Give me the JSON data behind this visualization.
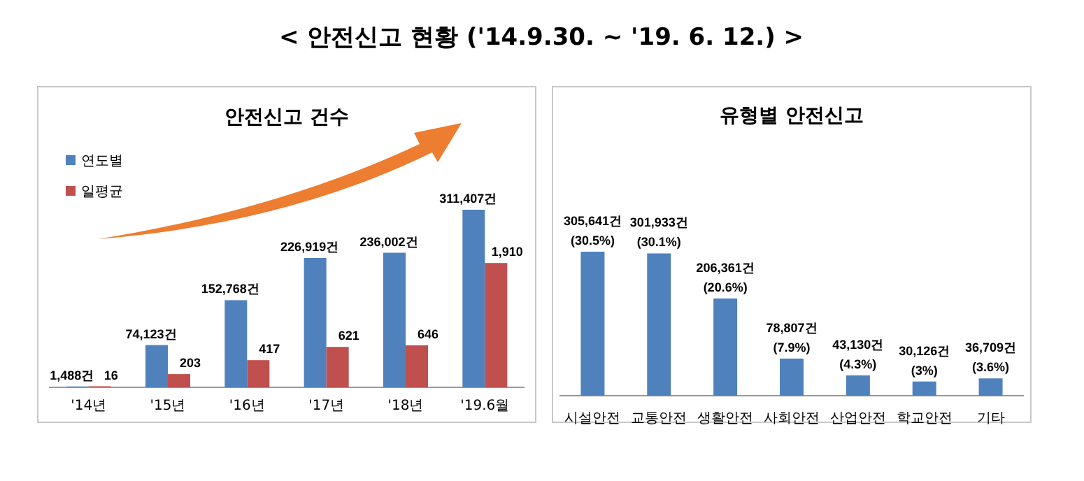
{
  "chart_data": [
    {
      "type": "bar",
      "title": "안전신고 건수",
      "annotations": [
        "< 안전신고 현황 ('14.9.30. ~ '19. 6. 12.) >"
      ],
      "categories": [
        "'14년",
        "'15년",
        "'16년",
        "'17년",
        "'18년",
        "'19.6월"
      ],
      "series": [
        {
          "name": "연도별",
          "color": "#4f81bd",
          "values": [
            1488,
            74123,
            152768,
            226919,
            236002,
            311407
          ],
          "value_labels": [
            "1,488건",
            "74,123건",
            "152,768건",
            "226,919건",
            "236,002건",
            "311,407건"
          ]
        },
        {
          "name": "일평균",
          "color": "#c0504d",
          "axis": "y2",
          "values": [
            16,
            203,
            417,
            621,
            646,
            1910
          ],
          "value_labels": [
            "16",
            "203",
            "417",
            "621",
            "646",
            "1,910"
          ]
        }
      ],
      "legend": "top left",
      "tick_labels": "x"
    },
    {
      "type": "bar",
      "title": "유형별 안전신고",
      "categories": [
        "시설안전",
        "교통안전",
        "생활안전",
        "사회안전",
        "산업안전",
        "학교안전",
        "기타"
      ],
      "series": [
        {
          "color": "#4f81bd",
          "values": [
            305641,
            301933,
            206361,
            78807,
            43130,
            30126,
            36709
          ],
          "value_labels": [
            "305,641건\n(30.5%)",
            "301,933건\n(30.1%)",
            "206,361건\n(20.6%)",
            "78,807건\n(7.9%)",
            "43,130건\n(4.3%)",
            "30,126건\n(3%)",
            "36,709건\n(3.6%)"
          ]
        }
      ],
      "legend": false,
      "tick_labels": "x"
    }
  ]
}
